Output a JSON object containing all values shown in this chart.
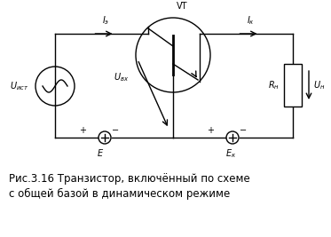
{
  "title": "Рис.3.16 Транзистор, включённый по схеме\nс общей базой в динамическом режиме",
  "title_fontsize": 8.5,
  "bg_color": "#ffffff",
  "circuit_color": "#000000",
  "text_color": "#000000",
  "fig_width": 3.73,
  "fig_height": 2.67,
  "dpi": 100
}
